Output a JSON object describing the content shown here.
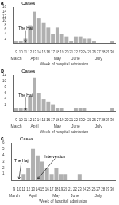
{
  "chart_data": [
    {
      "type": "bar",
      "title": "a",
      "subtitle": "Cases",
      "x": [
        9,
        10,
        11,
        12,
        13,
        14,
        15,
        16,
        17,
        18,
        19,
        20,
        21,
        22,
        23,
        24,
        25,
        26,
        27,
        28,
        29,
        30
      ],
      "values": [
        1,
        1,
        2,
        8,
        14,
        11,
        9,
        7,
        4,
        7,
        4,
        3,
        1,
        3,
        3,
        2,
        2,
        1,
        0,
        0,
        0,
        1
      ],
      "color": "#b0b0b0",
      "xlim": [
        8.4,
        30.6
      ],
      "xticks": [
        9,
        10,
        11,
        12,
        13,
        14,
        15,
        16,
        17,
        18,
        19,
        20,
        21,
        22,
        23,
        24,
        25,
        26,
        27,
        28,
        29,
        30
      ],
      "x2ticks": [
        {
          "value": 9,
          "label": "March"
        },
        {
          "value": 13,
          "label": "April"
        },
        {
          "value": 18,
          "label": "May"
        },
        {
          "value": 22,
          "label": "June"
        },
        {
          "value": 27,
          "label": "July"
        }
      ],
      "xlabel": "Week of hospital admission",
      "ylim": [
        0,
        16
      ],
      "yticks": [
        2,
        4,
        6,
        8,
        10,
        12,
        14,
        16
      ],
      "grid": false,
      "annotations": [
        {
          "text": "The Haj",
          "xy": [
            11,
            0.3
          ],
          "xytext": [
            9.5,
            5.5
          ]
        }
      ]
    },
    {
      "type": "bar",
      "title": "b",
      "subtitle": "Cases",
      "x": [
        9,
        10,
        11,
        12,
        13,
        14,
        15,
        16,
        17,
        18,
        19,
        20,
        21,
        22,
        23,
        24,
        25,
        26,
        27,
        28,
        29,
        30
      ],
      "values": [
        1,
        1,
        1,
        5,
        11,
        6,
        4,
        3,
        2,
        1,
        1,
        0,
        0,
        1,
        1,
        1,
        0,
        0,
        0,
        0,
        0,
        1
      ],
      "color": "#b0b0b0",
      "xlim": [
        8.4,
        30.6
      ],
      "xticks": [
        9,
        10,
        11,
        12,
        13,
        14,
        15,
        16,
        17,
        18,
        19,
        20,
        21,
        22,
        23,
        24,
        25,
        26,
        27,
        28,
        29,
        30
      ],
      "x2ticks": [
        {
          "value": 9,
          "label": "March"
        },
        {
          "value": 13,
          "label": "April"
        },
        {
          "value": 18,
          "label": "May"
        },
        {
          "value": 22,
          "label": "June"
        },
        {
          "value": 27,
          "label": "July"
        }
      ],
      "xlabel": "Week of hospital admission",
      "ylim": [
        0,
        12
      ],
      "yticks": [
        2,
        4,
        6,
        8,
        10,
        12
      ],
      "grid": false,
      "annotations": [
        {
          "text": "The Haj",
          "xy": [
            11,
            0.3
          ],
          "xytext": [
            9.5,
            4.5
          ]
        }
      ]
    },
    {
      "type": "bar",
      "title": "c",
      "subtitle": "Cases",
      "x": [
        9,
        10,
        11,
        12,
        13,
        14,
        15,
        16,
        17,
        18,
        19,
        20,
        21,
        22,
        23,
        24,
        25,
        26,
        27,
        28,
        29,
        30
      ],
      "values": [
        0,
        0,
        1,
        2,
        5,
        4,
        3,
        2,
        1,
        2,
        1,
        1,
        0,
        0,
        1,
        0,
        0,
        0,
        0,
        0,
        0,
        0
      ],
      "color": "#b0b0b0",
      "xlim": [
        8.4,
        30.6
      ],
      "xticks": [
        9,
        10,
        11,
        12,
        13,
        14,
        15,
        16,
        17,
        18,
        19,
        20,
        21,
        22,
        23,
        24,
        25,
        26,
        27,
        28,
        29,
        30
      ],
      "x2ticks": [
        {
          "value": 9,
          "label": "March"
        },
        {
          "value": 13,
          "label": "April"
        },
        {
          "value": 18,
          "label": "May"
        },
        {
          "value": 22,
          "label": "June"
        },
        {
          "value": 27,
          "label": "July"
        }
      ],
      "xlabel": "Week of hospital admission",
      "ylim": [
        0,
        6
      ],
      "yticks": [
        1,
        2,
        3,
        4,
        5,
        6
      ],
      "grid": false,
      "annotations": [
        {
          "text": "The Haj",
          "xy": [
            10,
            0.2
          ],
          "xytext": [
            9.0,
            2.8
          ]
        },
        {
          "text": "Intervention",
          "xy": [
            14,
            0.2
          ],
          "xytext": [
            15.5,
            3.5
          ]
        }
      ]
    }
  ]
}
